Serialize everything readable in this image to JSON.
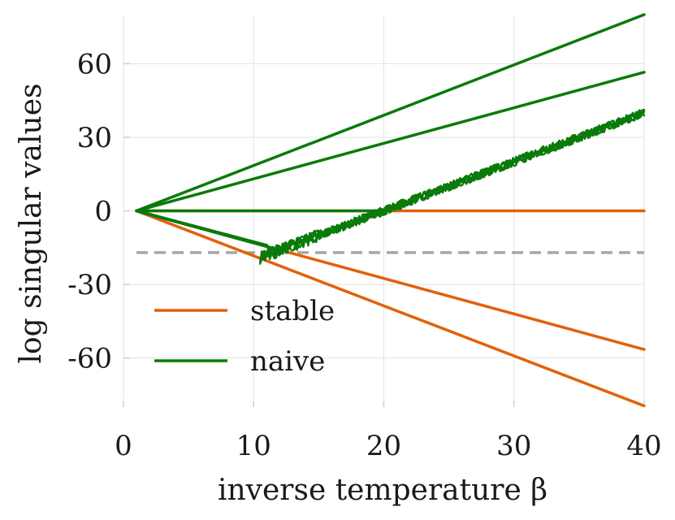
{
  "chart_data": {
    "type": "line",
    "title": "",
    "xlabel": "inverse temperature β",
    "ylabel": "log singular values",
    "xlim": [
      0,
      40
    ],
    "ylim": [
      -80,
      80
    ],
    "xticks": [
      0,
      10,
      20,
      30,
      40
    ],
    "xtick_labels": [
      "0",
      "10",
      "20",
      "30",
      "40"
    ],
    "yticks": [
      -60,
      -30,
      0,
      30,
      60
    ],
    "ytick_labels": [
      "-60",
      "-30",
      "0",
      "30",
      "60"
    ],
    "grid": true,
    "legend": {
      "position": "bottom-left",
      "entries": [
        {
          "label": "stable",
          "color": "#e3600a"
        },
        {
          "label": "naive",
          "color": "#0a7a0a"
        }
      ]
    },
    "reference_line": {
      "y": -17,
      "style": "dashed",
      "color": "#a6a6a6"
    },
    "series": [
      {
        "name": "stable",
        "color": "#e3600a",
        "lines": [
          {
            "x": [
              1,
              40
            ],
            "y": [
              0,
              0
            ]
          },
          {
            "x": [
              1,
              40
            ],
            "y": [
              0,
              -56.5
            ]
          },
          {
            "x": [
              1,
              40
            ],
            "y": [
              0,
              -79.5
            ]
          }
        ]
      },
      {
        "name": "naive",
        "color": "#0a7a0a",
        "lines": [
          {
            "x": [
              1,
              40
            ],
            "y": [
              0,
              80
            ]
          },
          {
            "x": [
              1,
              40
            ],
            "y": [
              0,
              56.5
            ]
          },
          {
            "x": [
              1,
              19.5
            ],
            "y": [
              0,
              0
            ]
          },
          {
            "x": [
              1,
              12
            ],
            "y": [
              0,
              -16
            ]
          },
          {
            "x": [
              1,
              11
            ],
            "y": [
              0,
              -14
            ]
          }
        ],
        "noisy_band": {
          "x_start": 10.5,
          "x_end": 40,
          "y_start": -19,
          "y_end": 40,
          "traces": 5
        }
      }
    ]
  }
}
